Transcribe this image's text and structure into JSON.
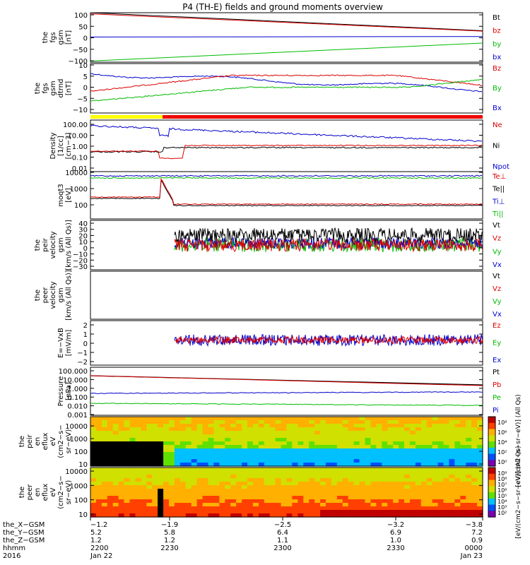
{
  "title": "P4 (TH-E) fields and ground moments overview",
  "chart_data": [
    {
      "type": "line",
      "ylabel": [
        "the",
        "fgs",
        "gsm",
        "[nT]"
      ],
      "yticks": [
        "100",
        "50",
        "0",
        "−50",
        "−100"
      ],
      "ylim": [
        -110,
        110
      ],
      "series": [
        {
          "name": "Bt",
          "color": "#000000",
          "x": [
            0,
            1
          ],
          "y": [
            110,
            30
          ]
        },
        {
          "name": "bz",
          "color": "#dd0000",
          "x": [
            0,
            1
          ],
          "y": [
            105,
            28
          ]
        },
        {
          "name": "by",
          "color": "#00bb00",
          "x": [
            0,
            1
          ],
          "y": [
            -105,
            -25
          ]
        },
        {
          "name": "bx",
          "color": "#0000cc",
          "x": [
            0,
            1
          ],
          "y": [
            2,
            4
          ]
        }
      ]
    },
    {
      "type": "line",
      "ylabel": [
        "the",
        "fgs",
        "gsm",
        "dtrnd",
        "[nT]"
      ],
      "yticks": [
        "10",
        "5",
        "0",
        "−5",
        "−10"
      ],
      "ylim": [
        -14,
        11
      ],
      "series": [
        {
          "name": "Bz",
          "color": "#dd0000"
        },
        {
          "name": "By",
          "color": "#00bb00"
        },
        {
          "name": "Bx",
          "color": "#0000cc"
        }
      ]
    },
    {
      "type": "line",
      "ylabel": [
        "Density",
        "[1/cc]",
        "[cm−3]"
      ],
      "yticks": [
        "100.00",
        "10.00",
        "1.00",
        "0.10",
        "0.01"
      ],
      "log": true,
      "series": [
        {
          "name": "Ne",
          "color": "#dd0000"
        },
        {
          "name": "Ni",
          "color": "#000000"
        },
        {
          "name": "Npot",
          "color": "#0000cc"
        }
      ]
    },
    {
      "type": "line",
      "ylabel": [
        "moqt3",
        "[eV]"
      ],
      "yticks": [
        "10000",
        "1000",
        "100"
      ],
      "log": true,
      "series": [
        {
          "name": "Te⊥",
          "color": "#dd0000"
        },
        {
          "name": "Te||",
          "color": "#000000"
        },
        {
          "name": "Ti⊥",
          "color": "#0000cc"
        },
        {
          "name": "Ti||",
          "color": "#00bb00"
        }
      ]
    },
    {
      "type": "line",
      "ylabel": [
        "the",
        "peir",
        "velocity",
        "gsm",
        "[km/s (All Qs)]"
      ],
      "yticks": [
        "40",
        "30",
        "20",
        "10",
        "0",
        "−10",
        "−20",
        "−30"
      ],
      "ylim": [
        -32,
        42
      ],
      "series": [
        {
          "name": "Vt",
          "color": "#000000"
        },
        {
          "name": "Vz",
          "color": "#dd0000"
        },
        {
          "name": "Vy",
          "color": "#00bb00"
        },
        {
          "name": "Vx",
          "color": "#0000cc"
        }
      ]
    },
    {
      "type": "line",
      "ylabel": [
        "the",
        "peer",
        "velocity",
        "gsm",
        "[km/s (All Qs)]"
      ],
      "yticks": [],
      "series": [
        {
          "name": "Vt",
          "color": "#000000"
        },
        {
          "name": "Vz",
          "color": "#dd0000"
        },
        {
          "name": "Vy",
          "color": "#00bb00"
        },
        {
          "name": "Vx",
          "color": "#0000cc"
        }
      ]
    },
    {
      "type": "line",
      "ylabel": [
        "E=−VxB",
        "[mV/m]"
      ],
      "yticks": [
        "2",
        "1",
        "0",
        "−1",
        "−2"
      ],
      "ylim": [
        -2.4,
        2.4
      ],
      "series": [
        {
          "name": "Ez",
          "color": "#dd0000"
        },
        {
          "name": "Ey",
          "color": "#00bb00"
        },
        {
          "name": "Ex",
          "color": "#0000cc"
        }
      ]
    },
    {
      "type": "line",
      "ylabel": [
        "Pressure",
        "[nPa]"
      ],
      "yticks": [
        "100.000",
        "10.000",
        "1.000",
        "0.100",
        "0.010",
        "0.001"
      ],
      "log": true,
      "series": [
        {
          "name": "Pt",
          "color": "#000000"
        },
        {
          "name": "Pb",
          "color": "#dd0000"
        },
        {
          "name": "Pe",
          "color": "#00bb00"
        },
        {
          "name": "Pi",
          "color": "#0000cc"
        }
      ]
    },
    {
      "type": "heatmap",
      "ylabel": [
        "the",
        "peir",
        "en",
        "eflux",
        "eV",
        "(cm2−s−",
        "sr−eV)"
      ],
      "yticks": [
        "10000",
        "1000",
        "100",
        "10"
      ],
      "colorbar_label": "[eV/(cm2−s−sr−eV)] (All Qs)",
      "colorbar_ticks": [
        "10⁸",
        "10⁶",
        "10⁴",
        "10²",
        "10⁰"
      ]
    },
    {
      "type": "heatmap",
      "ylabel": [
        "the",
        "peer",
        "en",
        "eflux",
        "eV",
        "(cm2−s−",
        "sr−eV)"
      ],
      "yticks": [
        "10000",
        "1000",
        "100",
        "10"
      ],
      "colorbar_label": "[eV/(cm2−s−sr−eV)] (All Qs)",
      "colorbar_ticks": [
        "10⁹",
        "10⁸",
        "10⁷",
        "10⁶",
        "10⁵",
        "10⁴",
        "10³",
        "10²"
      ]
    }
  ],
  "xaxis": {
    "labels": [
      "the_X−GSM",
      "the_Y−GSM",
      "the_Z−GSM",
      "hhmm",
      "2016"
    ],
    "columns": [
      [
        "−1.2",
        "5.2",
        "1.2",
        "2200",
        "Jan 22"
      ],
      [
        "−1.9",
        "5.8",
        "1.2",
        "2230",
        ""
      ],
      [
        "−2.5",
        "6.4",
        "1.1",
        "2300",
        ""
      ],
      [
        "−3.2",
        "6.9",
        "1.0",
        "2330",
        ""
      ],
      [
        "−3.8",
        "7.2",
        "0.9",
        "0000",
        "Jan 23"
      ]
    ]
  }
}
